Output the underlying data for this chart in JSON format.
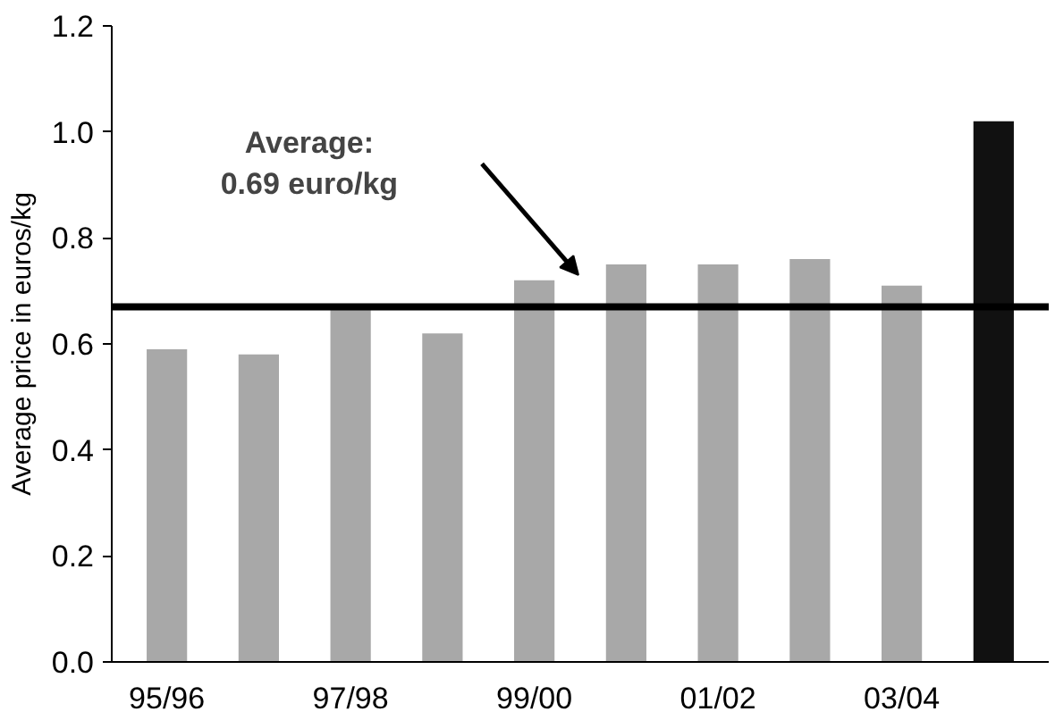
{
  "chart_data": {
    "type": "bar",
    "ylabel": "Average price in euros/kg",
    "categories": [
      "95/96",
      null,
      "97/98",
      null,
      "99/00",
      null,
      "01/02",
      null,
      "03/04",
      null
    ],
    "values": [
      0.59,
      0.58,
      0.67,
      0.62,
      0.72,
      0.75,
      0.75,
      0.76,
      0.71,
      1.02
    ],
    "colors": [
      "#a8a8a8",
      "#a8a8a8",
      "#a8a8a8",
      "#a8a8a8",
      "#a8a8a8",
      "#a8a8a8",
      "#a8a8a8",
      "#a8a8a8",
      "#a8a8a8",
      "#111111"
    ],
    "ylim": [
      0,
      1.2
    ],
    "yticks": [
      {
        "value": 0,
        "label": "0.0"
      },
      {
        "value": 0.2,
        "label": "0.2"
      },
      {
        "value": 0.4,
        "label": "0.4"
      },
      {
        "value": 0.6,
        "label": "0.6"
      },
      {
        "value": 0.8,
        "label": "0.8"
      },
      {
        "value": 1.0,
        "label": "1.0"
      },
      {
        "value": 1.2,
        "label": "1.2"
      }
    ],
    "ref_lines": [
      {
        "axis": "y",
        "value": 0.67,
        "color": "#000000"
      }
    ],
    "annotations": [
      "Average:\n0.69 euro/kg"
    ],
    "grid": false
  }
}
